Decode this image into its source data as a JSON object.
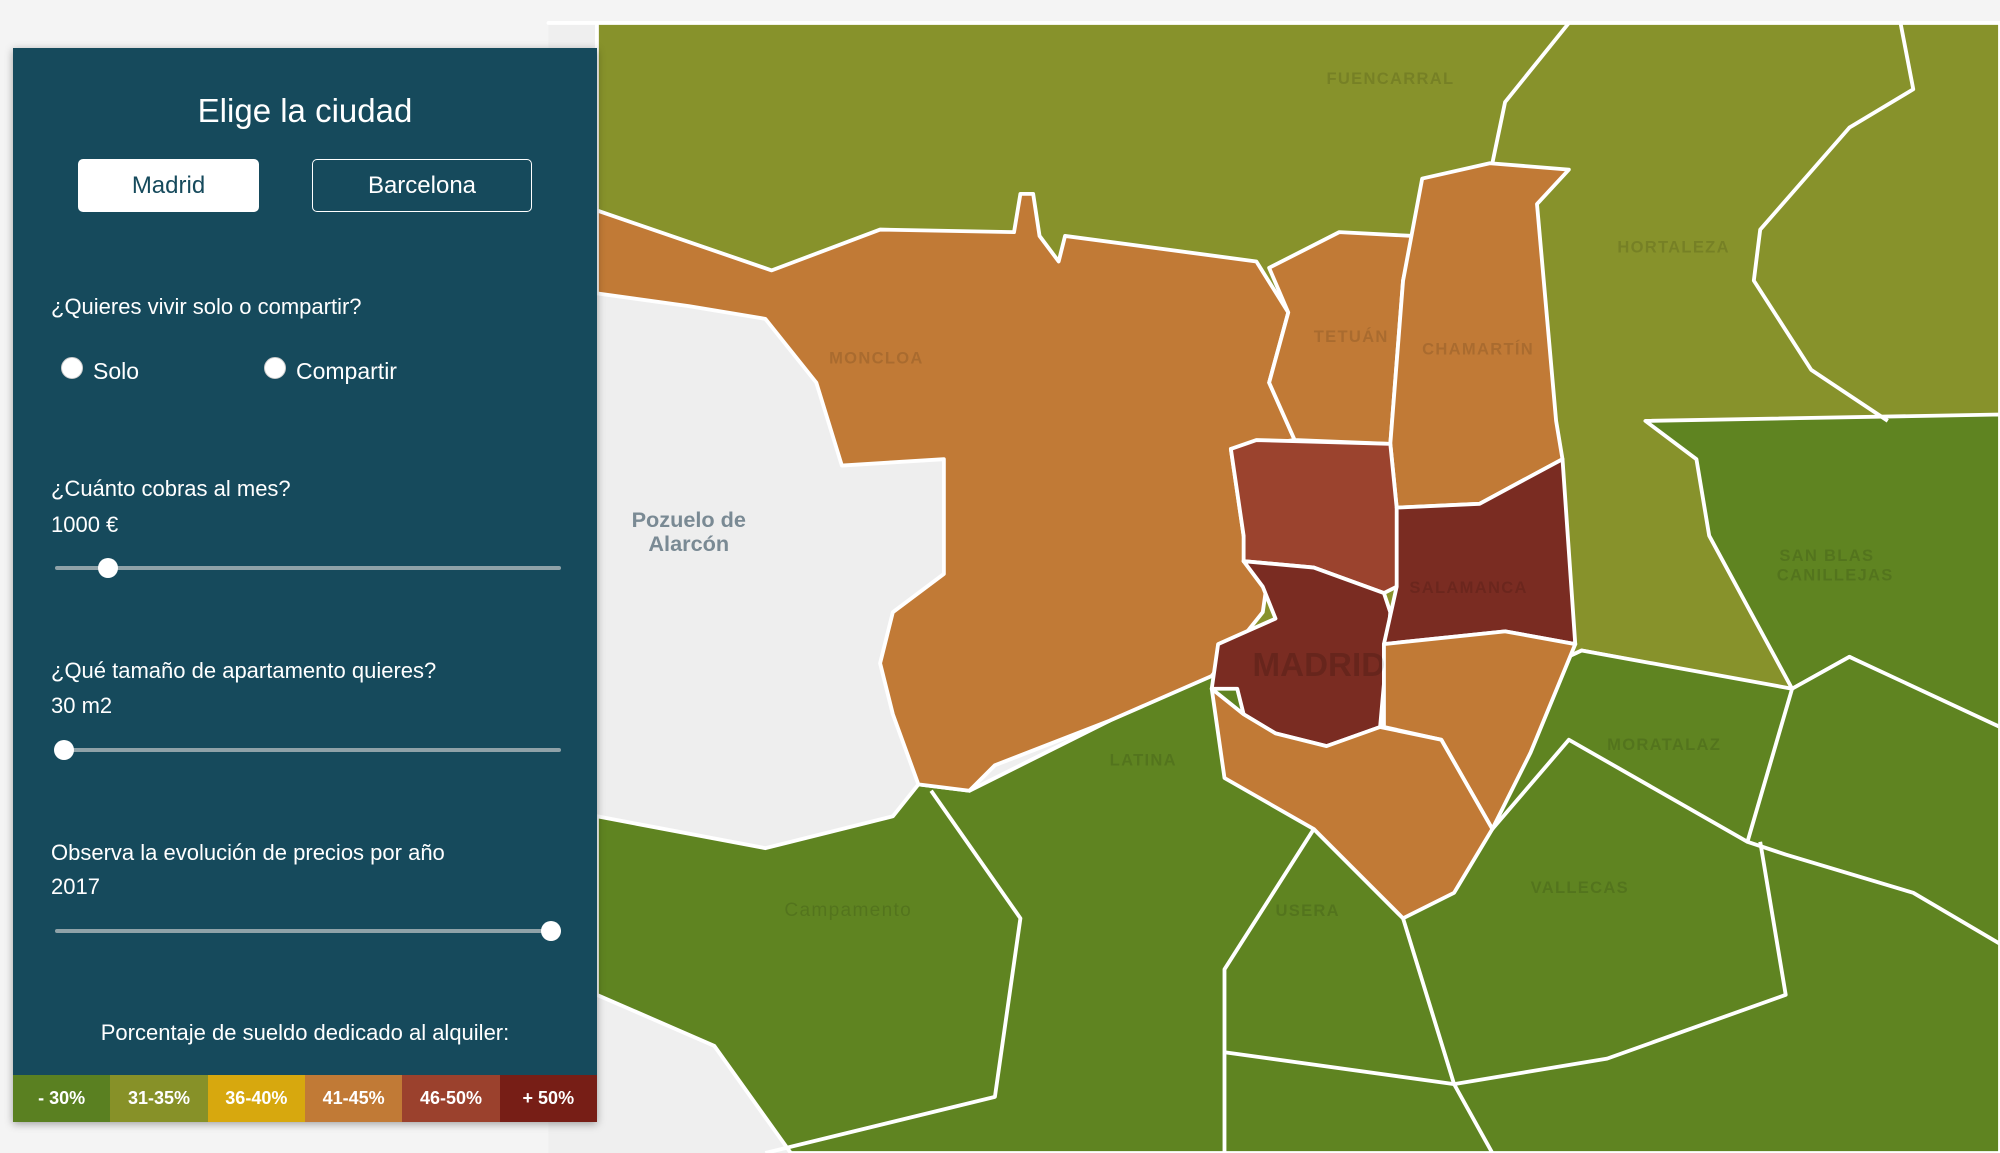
{
  "panel": {
    "title": "Elige la ciudad",
    "cities": [
      {
        "label": "Madrid",
        "active": true
      },
      {
        "label": "Barcelona",
        "active": false
      }
    ],
    "living": {
      "question": "¿Quieres vivir solo o compartir?",
      "options": [
        "Solo",
        "Compartir"
      ]
    },
    "salary": {
      "question": "¿Cuánto cobras al mes?",
      "value": "1000 €",
      "fraction": 0.08
    },
    "size": {
      "question": "¿Qué tamaño de apartamento quieres?",
      "value": "30 m2",
      "fraction": 0.02
    },
    "year": {
      "question": "Observa la evolución de precios por año",
      "value": "2017",
      "fraction": 1.0
    },
    "legend": {
      "title": "Porcentaje de sueldo dedicado al alquiler:",
      "items": [
        {
          "label": "- 30%",
          "color": "#5a8021"
        },
        {
          "label": "31-35%",
          "color": "#879128"
        },
        {
          "label": "36-40%",
          "color": "#d7a80e"
        },
        {
          "label": "41-45%",
          "color": "#c17a36"
        },
        {
          "label": "46-50%",
          "color": "#9b412d"
        },
        {
          "label": "+ 50%",
          "color": "#771e16"
        }
      ]
    }
  },
  "map": {
    "labels": {
      "fuencarral": "FUENCARRAL",
      "hortaleza": "HORTALEZA",
      "tetuan": "TETUÁN",
      "chamartin": "CHAMARTÍN",
      "salamanca": "SALAMANCA",
      "sanblas1": "SAN BLAS",
      "sanblas2": "CANILLEJAS",
      "madrid": "MADRID",
      "moncloa": "MONCLOA",
      "pozuelo1": "Pozuelo de",
      "pozuelo2": "Alarcón",
      "campamento": "Campamento",
      "moratalaz": "MORATALAZ",
      "vallecas": "VALLECAS",
      "usera": "USERA",
      "latina": "LATINA"
    }
  }
}
